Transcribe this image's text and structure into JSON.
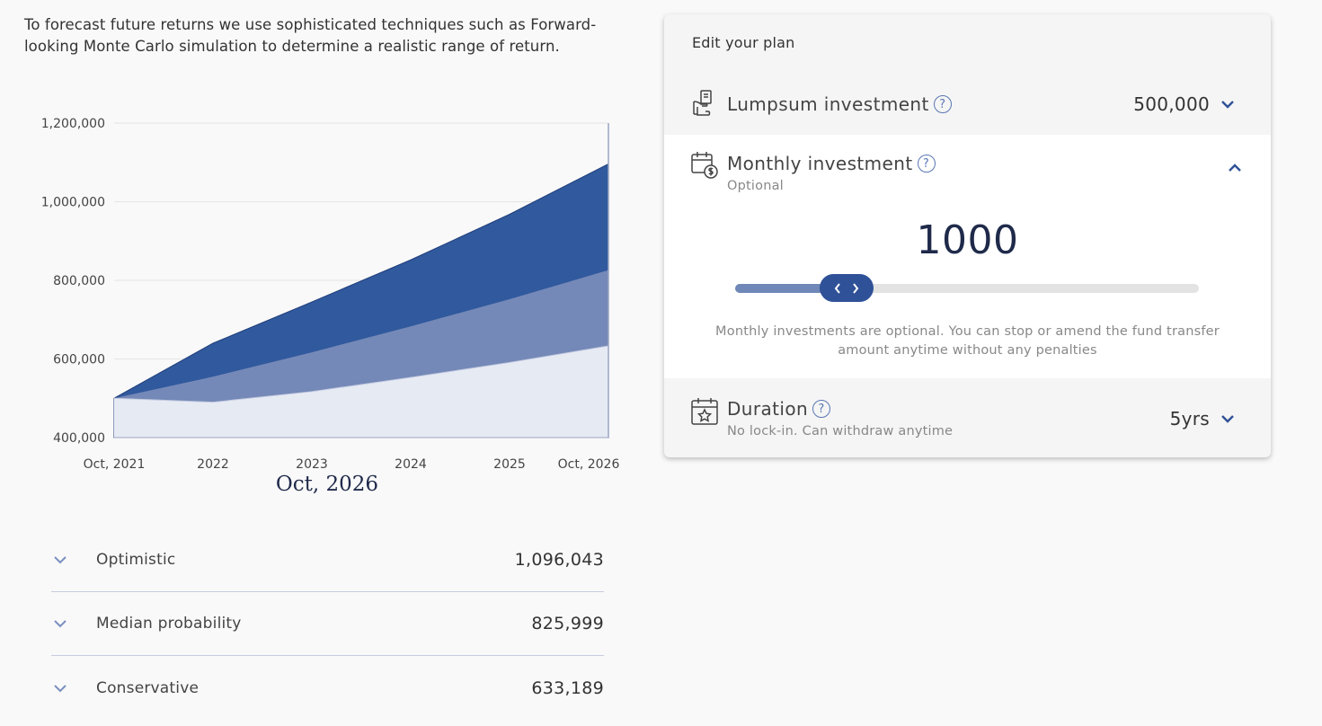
{
  "intro_text": "To forecast future returns we use sophisticated techniques such as Forward-looking Monte Carlo simulation to determine a realistic range of return.",
  "chart_data": {
    "type": "area",
    "x": [
      "Oct, 2021",
      "2022",
      "2023",
      "2024",
      "2025",
      "Oct, 2026"
    ],
    "x_index": [
      0,
      1,
      2,
      3,
      4,
      5
    ],
    "y_ticks": [
      "1,200,000",
      "1,000,000",
      "800,000",
      "600,000",
      "400,000"
    ],
    "ylim": [
      400000,
      1200000
    ],
    "series": [
      {
        "name": "Optimistic",
        "values": [
          500000,
          640000,
          745000,
          852000,
          968000,
          1096043
        ],
        "color": "#31599d"
      },
      {
        "name": "Median probability",
        "values": [
          500000,
          555000,
          617000,
          683000,
          752000,
          825999
        ],
        "color": "#7589b8"
      },
      {
        "name": "Conservative",
        "values": [
          500000,
          490000,
          517000,
          553000,
          591000,
          633189
        ],
        "color": "#e6eaf3"
      }
    ],
    "grid": true
  },
  "selected_date": "Oct, 2026",
  "scenarios": [
    {
      "label": "Optimistic",
      "value": "1,096,043"
    },
    {
      "label": "Median probability",
      "value": "825,999"
    },
    {
      "label": "Conservative",
      "value": "633,189"
    }
  ],
  "panel": {
    "title": "Edit your plan",
    "lumpsum": {
      "label": "Lumpsum investment",
      "help": "?",
      "value": "500,000"
    },
    "monthly": {
      "label": "Monthly investment",
      "help": "?",
      "sub": "Optional",
      "amount": "1000",
      "slider_fraction": 0.24,
      "note": "Monthly investments are optional. You can stop or amend the fund transfer amount anytime without any penalties"
    },
    "duration": {
      "label": "Duration",
      "help": "?",
      "sub": "No lock-in. Can withdraw anytime",
      "value": "5yrs"
    }
  },
  "colors": {
    "accent": "#2f5197",
    "dark_text": "#1f2a4a"
  }
}
